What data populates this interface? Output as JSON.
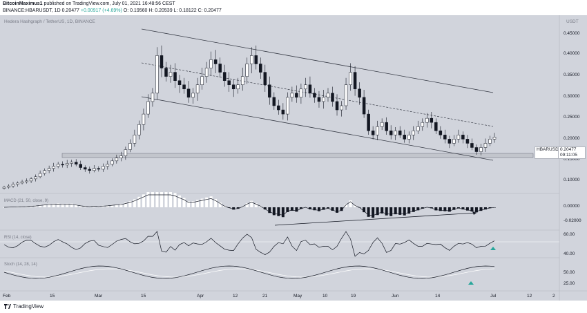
{
  "header": {
    "author": "BitcoinMaximus1",
    "published_text": "published on TradingView.com, July 01, 2021 16:48:56 CEST",
    "symbol_line": "BINANCE:HBARUSDT, 1D",
    "open": "0.20477",
    "change": "+0.00917 (+4.69%)",
    "ohlc": "O: 0.19560 H: 0.20539 L: 0.18122 C: 0.20477"
  },
  "chart": {
    "title": "Hedera Hashgraph / TetherUS, 1D, BINANCE",
    "currency": "USDT",
    "price_label_symbol": "HBARUSDT",
    "price_label_value": "0.20477",
    "price_label_timer": "09:11:05",
    "price_axis": [
      "0.45000",
      "0.40000",
      "0.35000",
      "0.30000",
      "0.25000",
      "0.20000",
      "0.15000",
      "0.10000"
    ],
    "time_axis": [
      "Feb",
      "15",
      "Mar",
      "15",
      "Apr",
      "12",
      "21",
      "May",
      "10",
      "19",
      "Jun",
      "14",
      "Jul",
      "12",
      "2"
    ],
    "macd_label": "MACD (21, 50, close, 9)",
    "macd_axis": [
      "0.00000",
      "-0.02000"
    ],
    "rsi_label": "RSI (14, close)",
    "rsi_axis": [
      "60.00",
      "40.00"
    ],
    "stoch_label": "Stoch (14, 28, 14)",
    "stoch_axis": [
      "50.00",
      "25.00"
    ]
  },
  "footer": {
    "brand": "TradingView"
  },
  "colors": {
    "background": "#d1d4dc",
    "up": "#ffffff",
    "down": "#131722",
    "accent_green": "#26a69a"
  },
  "chart_data": {
    "type": "candlestick",
    "title": "Hedera Hashgraph / TetherUS, 1D, BINANCE",
    "ylim": [
      0.075,
      0.48
    ],
    "close_series": [
      0.085,
      0.088,
      0.092,
      0.095,
      0.098,
      0.1,
      0.105,
      0.11,
      0.118,
      0.125,
      0.13,
      0.135,
      0.14,
      0.138,
      0.142,
      0.145,
      0.14,
      0.132,
      0.128,
      0.125,
      0.13,
      0.128,
      0.135,
      0.14,
      0.148,
      0.155,
      0.16,
      0.175,
      0.19,
      0.21,
      0.235,
      0.26,
      0.29,
      0.31,
      0.4,
      0.37,
      0.35,
      0.36,
      0.34,
      0.33,
      0.32,
      0.3,
      0.31,
      0.33,
      0.35,
      0.37,
      0.39,
      0.38,
      0.36,
      0.34,
      0.33,
      0.32,
      0.33,
      0.35,
      0.38,
      0.4,
      0.38,
      0.36,
      0.33,
      0.3,
      0.28,
      0.27,
      0.26,
      0.3,
      0.31,
      0.3,
      0.32,
      0.33,
      0.31,
      0.3,
      0.29,
      0.3,
      0.31,
      0.29,
      0.27,
      0.28,
      0.33,
      0.36,
      0.32,
      0.3,
      0.26,
      0.22,
      0.21,
      0.23,
      0.24,
      0.22,
      0.21,
      0.22,
      0.21,
      0.2,
      0.21,
      0.22,
      0.23,
      0.24,
      0.25,
      0.24,
      0.22,
      0.21,
      0.2,
      0.19,
      0.2,
      0.21,
      0.2,
      0.19,
      0.18,
      0.17,
      0.18,
      0.19,
      0.2,
      0.2048
    ]
  }
}
